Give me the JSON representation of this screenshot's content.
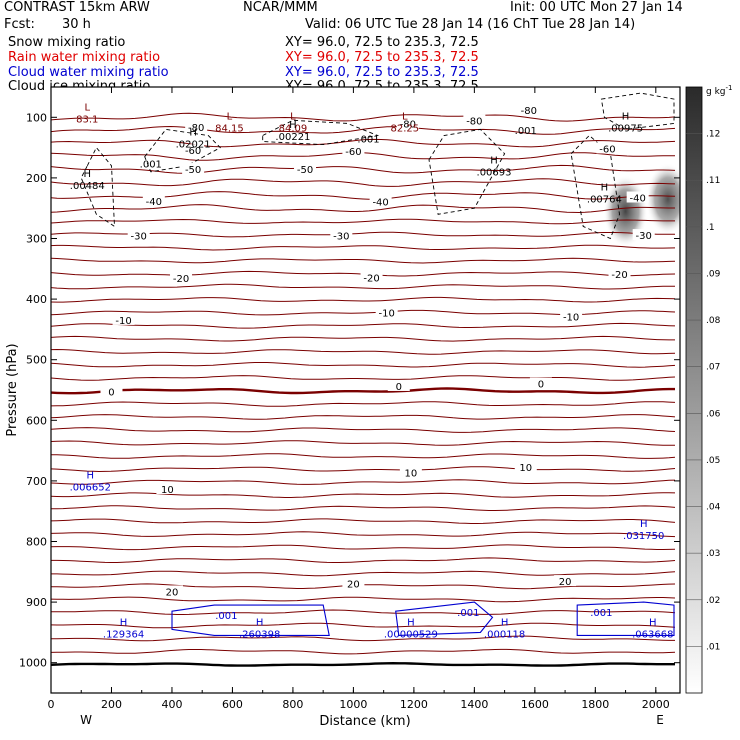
{
  "header": {
    "model": "CONTRAST 15km ARW",
    "institution": "NCAR/MMM",
    "init": "Init: 00 UTC Mon 27 Jan 14",
    "fcst_label": "Fcst:",
    "fcst_value": "30 h",
    "valid": "Valid: 06 UTC Tue 28 Jan 14 (16 ChT Tue 28 Jan 14)",
    "fields": [
      {
        "name": "Snow mixing ratio",
        "xy": "XY=  96.0, 72.5 to 235.3, 72.5",
        "color": "#000000"
      },
      {
        "name": "Rain water mixing ratio",
        "xy": "XY=  96.0, 72.5 to 235.3, 72.5",
        "color": "#e00000"
      },
      {
        "name": "Cloud water mixing ratio",
        "xy": "XY=  96.0, 72.5 to 235.3, 72.5",
        "color": "#0000d0"
      },
      {
        "name": "Cloud ice mixing ratio",
        "xy": "XY=  96.0, 72.5 to 235.3, 72.5",
        "color": "#000000"
      }
    ]
  },
  "chart_data": {
    "type": "heatmap",
    "xlabel": "Distance (km)",
    "ylabel": "Pressure (hPa)",
    "xlim": [
      0,
      2080
    ],
    "ylim": [
      1050,
      50
    ],
    "x_ticks": [
      "0",
      "200",
      "400",
      "600",
      "800",
      "1000",
      "1200",
      "1400",
      "1600",
      "1800",
      "2000"
    ],
    "y_ticks": [
      "100",
      "200",
      "300",
      "400",
      "500",
      "600",
      "700",
      "800",
      "900",
      "1000"
    ],
    "x_end_labels": {
      "left": "W",
      "right": "E"
    },
    "colorbar": {
      "unit": "g kg",
      "unit_exp": "-1",
      "ticks": [
        ".01",
        ".02",
        ".03",
        ".04",
        ".05",
        ".06",
        ".07",
        ".08",
        ".09",
        ".1",
        ".11",
        ".12"
      ],
      "min": 0,
      "max": 0.13
    },
    "temperature_contours": {
      "color": "#7a0000",
      "levels": [
        -80,
        -70,
        -60,
        -50,
        -40,
        -30,
        -20,
        -10,
        0,
        10,
        20
      ],
      "labels": [
        {
          "text": "-80",
          "x": 480,
          "p": 118
        },
        {
          "text": "-80",
          "x": 1180,
          "p": 112
        },
        {
          "text": "-80",
          "x": 1580,
          "p": 90
        },
        {
          "text": "-80",
          "x": 1400,
          "p": 107
        },
        {
          "text": "-60",
          "x": 470,
          "p": 156
        },
        {
          "text": "-60",
          "x": 1000,
          "p": 157
        },
        {
          "text": "-60",
          "x": 1840,
          "p": 153
        },
        {
          "text": "-50",
          "x": 470,
          "p": 187
        },
        {
          "text": "-50",
          "x": 840,
          "p": 187
        },
        {
          "text": "-40",
          "x": 340,
          "p": 240
        },
        {
          "text": "-40",
          "x": 1090,
          "p": 241
        },
        {
          "text": "-40",
          "x": 1940,
          "p": 234
        },
        {
          "text": "-30",
          "x": 290,
          "p": 297
        },
        {
          "text": "-30",
          "x": 960,
          "p": 297
        },
        {
          "text": "-30",
          "x": 1960,
          "p": 296
        },
        {
          "text": "-20",
          "x": 430,
          "p": 367
        },
        {
          "text": "-20",
          "x": 1060,
          "p": 366
        },
        {
          "text": "-20",
          "x": 1880,
          "p": 360
        },
        {
          "text": "-10",
          "x": 240,
          "p": 436
        },
        {
          "text": "-10",
          "x": 1110,
          "p": 424
        },
        {
          "text": "-10",
          "x": 1720,
          "p": 430
        },
        {
          "text": "0",
          "x": 200,
          "p": 554
        },
        {
          "text": "0",
          "x": 1150,
          "p": 545
        },
        {
          "text": "0",
          "x": 1620,
          "p": 541
        },
        {
          "text": "10",
          "x": 385,
          "p": 715
        },
        {
          "text": "10",
          "x": 1190,
          "p": 688
        },
        {
          "text": "10",
          "x": 1570,
          "p": 679
        },
        {
          "text": "20",
          "x": 400,
          "p": 884
        },
        {
          "text": "20",
          "x": 1000,
          "p": 871
        },
        {
          "text": "20",
          "x": 1700,
          "p": 867
        }
      ]
    },
    "extrema": [
      {
        "mark": "L",
        "value": "83.1",
        "x": 120,
        "p": 95,
        "color": "#7a0000"
      },
      {
        "mark": "L",
        "value": "84.15",
        "x": 590,
        "p": 110,
        "color": "#7a0000"
      },
      {
        "mark": "L",
        "value": "84.09",
        "x": 800,
        "p": 110,
        "color": "#7a0000"
      },
      {
        "mark": "L",
        "value": "82.25",
        "x": 1170,
        "p": 110,
        "color": "#7a0000"
      },
      {
        "mark": "H",
        "value": ".02021",
        "x": 470,
        "p": 137,
        "color": "#000000"
      },
      {
        "mark": "H",
        "value": ".00221",
        "x": 800,
        "p": 124,
        "color": "#000000"
      },
      {
        "mark": "H",
        "value": ".00693",
        "x": 1465,
        "p": 183,
        "color": "#000000"
      },
      {
        "mark": "H",
        "value": ".00975",
        "x": 1900,
        "p": 110,
        "color": "#000000"
      },
      {
        "mark": "H",
        "value": ".00484",
        "x": 120,
        "p": 205,
        "color": "#000000"
      },
      {
        "mark": "H",
        "value": ".00764",
        "x": 1830,
        "p": 227,
        "color": "#000000"
      },
      {
        "mark": "H",
        "value": ".006652",
        "x": 130,
        "p": 703,
        "color": "#0000d0"
      },
      {
        "mark": "H",
        "value": ".031750",
        "x": 1960,
        "p": 783,
        "color": "#0000d0"
      },
      {
        "mark": "H",
        "value": ".129364",
        "x": 240,
        "p": 945,
        "color": "#0000d0"
      },
      {
        "mark": "H",
        "value": ".260398",
        "x": 690,
        "p": 945,
        "color": "#0000d0"
      },
      {
        "mark": "H",
        "value": ".00000529",
        "x": 1190,
        "p": 945,
        "color": "#0000d0"
      },
      {
        "mark": "H",
        "value": ".000118",
        "x": 1500,
        "p": 945,
        "color": "#0000d0"
      },
      {
        "mark": "H",
        "value": ".063668",
        "x": 1990,
        "p": 945,
        "color": "#0000d0"
      }
    ],
    "small_labels": [
      {
        "text": ".001",
        "x": 330,
        "p": 178,
        "color": "#000000"
      },
      {
        "text": ".001",
        "x": 1050,
        "p": 137,
        "color": "#000000"
      },
      {
        "text": ".001",
        "x": 1570,
        "p": 123,
        "color": "#000000"
      },
      {
        "text": ".001",
        "x": 580,
        "p": 923,
        "color": "#0000d0"
      },
      {
        "text": ".001",
        "x": 1380,
        "p": 918,
        "color": "#0000d0"
      },
      {
        "text": ".001",
        "x": 1820,
        "p": 918,
        "color": "#0000d0"
      }
    ],
    "shading": [
      {
        "x": 1900,
        "p": 255,
        "value": 0.12
      },
      {
        "x": 2040,
        "p": 235,
        "value": 0.11
      }
    ]
  }
}
